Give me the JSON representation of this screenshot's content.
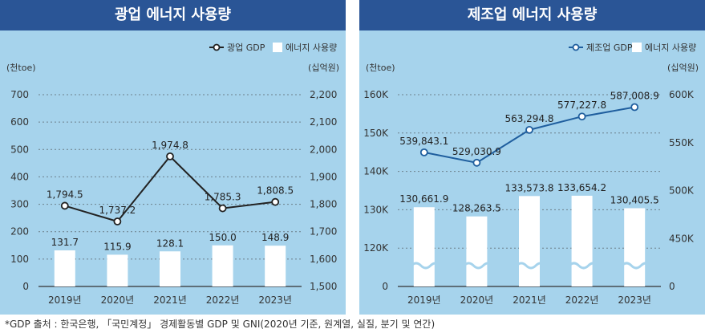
{
  "footnote": "*GDP 출처 : 한국은행, 「국민계정」 경제활동별 GDP 및 GNI(2020년 기준, 원계열, 실질, 분기 및 연간)",
  "colors": {
    "panel_bg": "#a6d3ec",
    "title_bg": "#2a5596",
    "line1": "#222222",
    "line2": "#1f5e9e",
    "bar": "#ffffff",
    "grid": "#6c7f8a"
  },
  "chart_data": [
    {
      "type": "bar",
      "title": "광업 에너지 사용량",
      "categories": [
        "2019년",
        "2020년",
        "2021년",
        "2022년",
        "2023년"
      ],
      "left_unit": "(천toe)",
      "right_unit": "(십억원)",
      "left_ticks": [
        "0",
        "100",
        "200",
        "300",
        "400",
        "500",
        "600",
        "700"
      ],
      "right_ticks": [
        "1,500",
        "1,600",
        "1,700",
        "1,800",
        "1,900",
        "2,000",
        "2,100",
        "2,200"
      ],
      "ylim": [
        0,
        700
      ],
      "y2lim": [
        1500,
        2200
      ],
      "legend": {
        "line": "광업 GDP",
        "bar": "에너지 사용량",
        "position": "top-right"
      },
      "series": [
        {
          "name": "에너지 사용량",
          "kind": "bar",
          "values": [
            131.7,
            115.9,
            128.1,
            150.0,
            148.9
          ],
          "labels": [
            "131.7",
            "115.9",
            "128.1",
            "150.0",
            "148.9"
          ]
        },
        {
          "name": "광업 GDP",
          "kind": "line",
          "axis": "right",
          "values": [
            1794.5,
            1737.2,
            1974.8,
            1785.3,
            1808.5
          ],
          "labels": [
            "1,794.5",
            "1,737.2",
            "1,974.8",
            "1,785.3",
            "1,808.5"
          ]
        }
      ],
      "grid": true,
      "axis_break": false
    },
    {
      "type": "bar",
      "title": "제조업 에너지 사용량",
      "categories": [
        "2019년",
        "2020년",
        "2021년",
        "2022년",
        "2023년"
      ],
      "left_unit": "(천toe)",
      "right_unit": "(십억원)",
      "left_ticks": [
        "0",
        "120K",
        "130K",
        "140K",
        "150K",
        "160K"
      ],
      "right_ticks": [
        "0",
        "450K",
        "500K",
        "550K",
        "600K"
      ],
      "left_scale": [
        110000,
        160000
      ],
      "right_scale": [
        400000,
        600000
      ],
      "legend": {
        "line": "제조업 GDP",
        "bar": "에너지 사용량",
        "position": "top-right"
      },
      "series": [
        {
          "name": "에너지 사용량",
          "kind": "bar",
          "values": [
            130661.9,
            128263.5,
            133573.8,
            133654.2,
            130405.5
          ],
          "labels": [
            "130,661.9",
            "128,263.5",
            "133,573.8",
            "133,654.2",
            "130,405.5"
          ]
        },
        {
          "name": "제조업 GDP",
          "kind": "line",
          "axis": "right",
          "values": [
            539843.1,
            529030.9,
            563294.8,
            577227.8,
            587008.9
          ],
          "labels": [
            "539,843.1",
            "529,030.9",
            "563,294.8",
            "577,227.8",
            "587,008.9"
          ]
        }
      ],
      "grid": true,
      "axis_break": true
    }
  ]
}
